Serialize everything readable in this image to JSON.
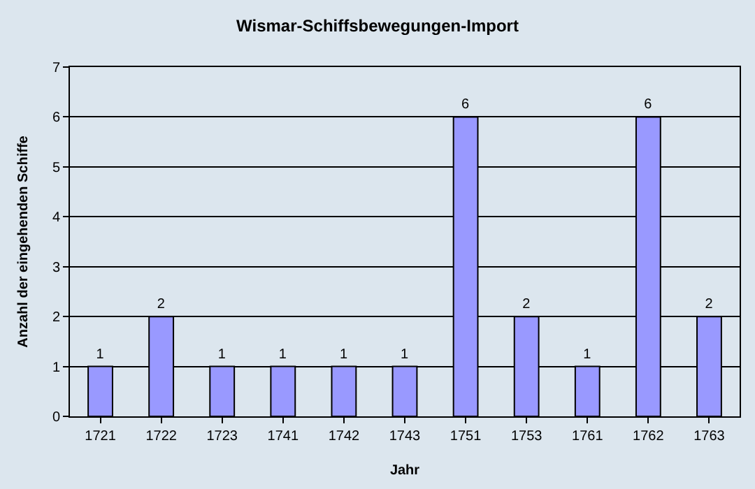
{
  "chart_data": {
    "type": "bar",
    "title": "Wismar-Schiffsbewegungen-Import",
    "xlabel": "Jahr",
    "ylabel": "Anzahl der eingehenden Schiffe",
    "categories": [
      "1721",
      "1722",
      "1723",
      "1741",
      "1742",
      "1743",
      "1751",
      "1753",
      "1761",
      "1762",
      "1763"
    ],
    "values": [
      1,
      2,
      1,
      1,
      1,
      1,
      6,
      2,
      1,
      6,
      2
    ],
    "color": "#9999ff",
    "ylim": [
      0,
      7
    ],
    "yticks": [
      0,
      1,
      2,
      3,
      4,
      5,
      6,
      7
    ],
    "grid": "y",
    "data_labels": true
  }
}
